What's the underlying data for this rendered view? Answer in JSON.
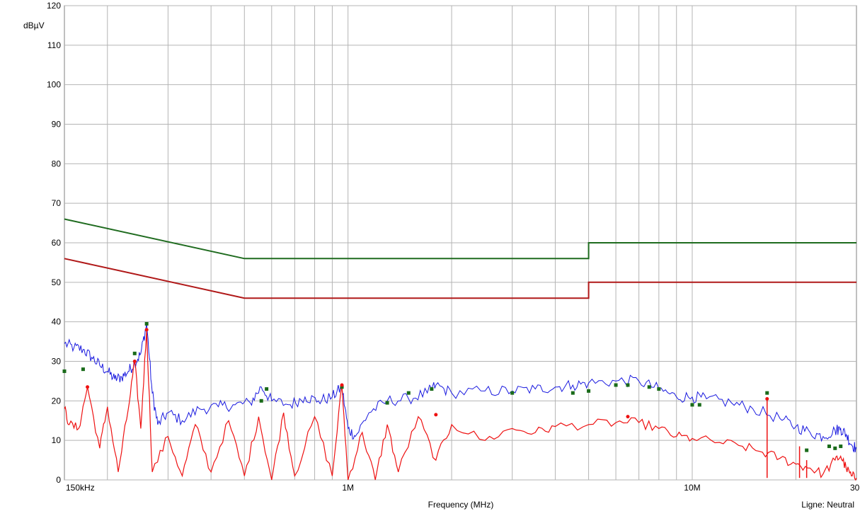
{
  "chart_data": {
    "type": "line",
    "title": "",
    "ylabel": "dBµV",
    "xlabel": "Frequency (MHz)",
    "x_scale": "log",
    "xlim_mhz": [
      0.15,
      30
    ],
    "ylim": [
      0,
      120
    ],
    "grid": true,
    "y_ticks": [
      0,
      10,
      20,
      30,
      40,
      50,
      60,
      70,
      80,
      90,
      100,
      110,
      120
    ],
    "x_tick_labels": [
      {
        "value": 0.15,
        "label": "150kHz"
      },
      {
        "value": 1,
        "label": "1M"
      },
      {
        "value": 10,
        "label": "10M"
      },
      {
        "value": 30,
        "label": "30MHz"
      }
    ],
    "footer_note": "Ligne: Neutral",
    "colors": {
      "quasi_peak_limit": "#1f6b1f",
      "average_limit": "#b01818",
      "peak_scan": "#1a1adf",
      "average_scan": "#ee1111",
      "qp_markers": "#1a6b1a",
      "grid": "#b4b4b4"
    },
    "limits": [
      {
        "key": "qp",
        "points": [
          [
            0.15,
            66
          ],
          [
            0.5,
            56
          ],
          [
            5,
            56
          ],
          [
            5,
            60
          ],
          [
            30,
            60
          ]
        ]
      },
      {
        "key": "avg",
        "points": [
          [
            0.15,
            56
          ],
          [
            0.5,
            46
          ],
          [
            5,
            46
          ],
          [
            5,
            50
          ],
          [
            30,
            50
          ]
        ]
      }
    ],
    "peak_scan_points": [
      [
        0.15,
        34.5
      ],
      [
        0.16,
        33.5
      ],
      [
        0.17,
        33
      ],
      [
        0.18,
        31
      ],
      [
        0.19,
        29
      ],
      [
        0.2,
        27.5
      ],
      [
        0.21,
        25.5
      ],
      [
        0.22,
        26
      ],
      [
        0.23,
        27.5
      ],
      [
        0.24,
        29.5
      ],
      [
        0.25,
        32
      ],
      [
        0.26,
        39.5
      ],
      [
        0.27,
        22
      ],
      [
        0.28,
        14
      ],
      [
        0.3,
        17
      ],
      [
        0.33,
        15
      ],
      [
        0.37,
        18
      ],
      [
        0.42,
        18.5
      ],
      [
        0.47,
        19
      ],
      [
        0.52,
        19.5
      ],
      [
        0.56,
        23.5
      ],
      [
        0.6,
        20
      ],
      [
        0.68,
        19
      ],
      [
        0.75,
        21
      ],
      [
        0.82,
        20
      ],
      [
        0.9,
        21
      ],
      [
        0.96,
        23.5
      ],
      [
        1.0,
        13
      ],
      [
        1.05,
        11
      ],
      [
        1.15,
        17
      ],
      [
        1.3,
        20
      ],
      [
        1.5,
        20.5
      ],
      [
        1.7,
        22
      ],
      [
        1.8,
        24
      ],
      [
        2.0,
        22
      ],
      [
        2.5,
        22.5
      ],
      [
        3.0,
        22.5
      ],
      [
        3.5,
        23
      ],
      [
        4.0,
        23.5
      ],
      [
        4.5,
        24
      ],
      [
        5.0,
        24.5
      ],
      [
        6.0,
        25
      ],
      [
        7.0,
        25
      ],
      [
        8.0,
        23
      ],
      [
        9.0,
        21
      ],
      [
        10,
        21
      ],
      [
        11,
        20.5
      ],
      [
        13,
        19.5
      ],
      [
        15,
        18
      ],
      [
        18,
        15.5
      ],
      [
        20,
        13.5
      ],
      [
        22,
        12
      ],
      [
        24,
        11
      ],
      [
        26,
        12.5
      ],
      [
        27,
        13
      ],
      [
        28,
        11.5
      ],
      [
        29,
        9
      ],
      [
        30,
        8
      ]
    ],
    "avg_scan_points": [
      [
        0.15,
        18
      ],
      [
        0.155,
        14
      ],
      [
        0.165,
        13
      ],
      [
        0.175,
        23.5
      ],
      [
        0.19,
        8
      ],
      [
        0.2,
        18.5
      ],
      [
        0.215,
        2
      ],
      [
        0.23,
        18
      ],
      [
        0.24,
        30
      ],
      [
        0.25,
        13
      ],
      [
        0.26,
        38
      ],
      [
        0.27,
        2
      ],
      [
        0.3,
        11
      ],
      [
        0.33,
        1
      ],
      [
        0.36,
        14
      ],
      [
        0.4,
        2
      ],
      [
        0.45,
        15
      ],
      [
        0.5,
        1
      ],
      [
        0.55,
        16
      ],
      [
        0.6,
        0
      ],
      [
        0.65,
        17
      ],
      [
        0.7,
        1
      ],
      [
        0.8,
        16
      ],
      [
        0.9,
        1
      ],
      [
        0.96,
        24
      ],
      [
        1.0,
        0
      ],
      [
        1.1,
        12
      ],
      [
        1.2,
        0
      ],
      [
        1.3,
        14
      ],
      [
        1.4,
        2
      ],
      [
        1.6,
        16
      ],
      [
        1.8,
        5
      ],
      [
        2.0,
        14
      ],
      [
        2.5,
        10
      ],
      [
        3.0,
        13
      ],
      [
        3.5,
        12
      ],
      [
        4.0,
        13.5
      ],
      [
        5.0,
        14
      ],
      [
        6.0,
        14.5
      ],
      [
        7.0,
        14.5
      ],
      [
        8.0,
        13
      ],
      [
        9.0,
        11
      ],
      [
        10,
        10.5
      ],
      [
        12,
        9.5
      ],
      [
        14,
        8.5
      ],
      [
        16,
        7
      ],
      [
        18,
        5.5
      ],
      [
        20,
        4
      ],
      [
        22,
        3
      ],
      [
        24,
        1.5
      ],
      [
        26,
        5
      ],
      [
        27,
        6
      ],
      [
        28,
        3
      ],
      [
        29,
        1
      ],
      [
        30,
        0.5
      ]
    ],
    "avg_spikes": [
      [
        16.5,
        20.5
      ],
      [
        20.5,
        8.5
      ],
      [
        21.5,
        5
      ]
    ],
    "qp_markers": [
      [
        0.15,
        27.5
      ],
      [
        0.17,
        28
      ],
      [
        0.24,
        32
      ],
      [
        0.26,
        39.5
      ],
      [
        0.56,
        20
      ],
      [
        0.58,
        23
      ],
      [
        0.96,
        23.5
      ],
      [
        1.3,
        19.5
      ],
      [
        1.5,
        22
      ],
      [
        1.75,
        23
      ],
      [
        3.0,
        22
      ],
      [
        4.5,
        22
      ],
      [
        5.0,
        22.5
      ],
      [
        6.0,
        24
      ],
      [
        6.5,
        24
      ],
      [
        7.5,
        23.5
      ],
      [
        8.0,
        23
      ],
      [
        10,
        19
      ],
      [
        10.5,
        19
      ],
      [
        16.5,
        22
      ],
      [
        21.5,
        7.5
      ],
      [
        25,
        8.5
      ],
      [
        26,
        8
      ],
      [
        27,
        8.5
      ]
    ],
    "avg_markers": [
      [
        0.175,
        23.5
      ],
      [
        0.24,
        30
      ],
      [
        0.26,
        38
      ],
      [
        0.96,
        24
      ],
      [
        1.8,
        16.5
      ],
      [
        6.5,
        16
      ],
      [
        16.5,
        20.5
      ]
    ]
  }
}
